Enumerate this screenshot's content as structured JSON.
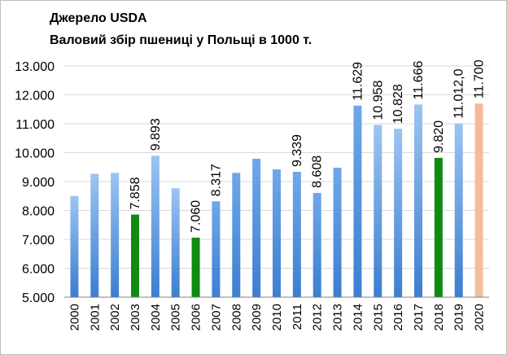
{
  "chart_data": {
    "type": "bar",
    "title": "Джерело USDA",
    "subtitle": "Валовий збір пшениці у Польщі в 1000 т.",
    "xlabel": "",
    "ylabel": "",
    "ylim": [
      5000,
      13000
    ],
    "ytick_labels": [
      "5.000",
      "6.000",
      "7.000",
      "8.000",
      "9.000",
      "10.000",
      "11.000",
      "12.000",
      "13.000"
    ],
    "ytick_values": [
      5000,
      6000,
      7000,
      8000,
      9000,
      10000,
      11000,
      12000,
      13000
    ],
    "grid": true,
    "legend": "none",
    "categories": [
      "2000",
      "2001",
      "2002",
      "2003",
      "2004",
      "2005",
      "2006",
      "2007",
      "2008",
      "2009",
      "2010",
      "2011",
      "2012",
      "2013",
      "2014",
      "2015",
      "2016",
      "2017",
      "2018",
      "2019",
      "2020"
    ],
    "values": [
      8500,
      9270,
      9300,
      7858,
      9893,
      8770,
      7060,
      8317,
      9300,
      9790,
      9420,
      9339,
      8608,
      9480,
      11629,
      10958,
      10828,
      11666,
      9820,
      11012,
      11700
    ],
    "data_labels": [
      "",
      "",
      "",
      "7.858",
      "9.893",
      "",
      "7.060",
      "8.317",
      "",
      "",
      "",
      "9.339",
      "8.608",
      "",
      "11.629",
      "10.958",
      "10.828",
      "11.666",
      "9.820",
      "11.012,0",
      "11.700"
    ],
    "bar_styles": [
      "gradient-light",
      "gradient-light",
      "gradient-light",
      "green",
      "gradient-light",
      "gradient-light",
      "green",
      "gradient",
      "gradient",
      "gradient",
      "gradient",
      "gradient",
      "gradient",
      "gradient",
      "gradient",
      "gradient-light",
      "gradient-light",
      "gradient-light",
      "green",
      "gradient-light",
      "orange"
    ],
    "colors": {
      "bar_top": "#6fa8e8",
      "bar_bottom": "#3c7ed1",
      "bar_light_top": "#9cc4f1",
      "bar_light_bottom": "#3c7ed1",
      "green": "#118a11",
      "orange_top": "#f7b99a",
      "orange_bottom": "#f2c09f",
      "grid": "#d9d9d9",
      "axis": "#808080"
    }
  }
}
